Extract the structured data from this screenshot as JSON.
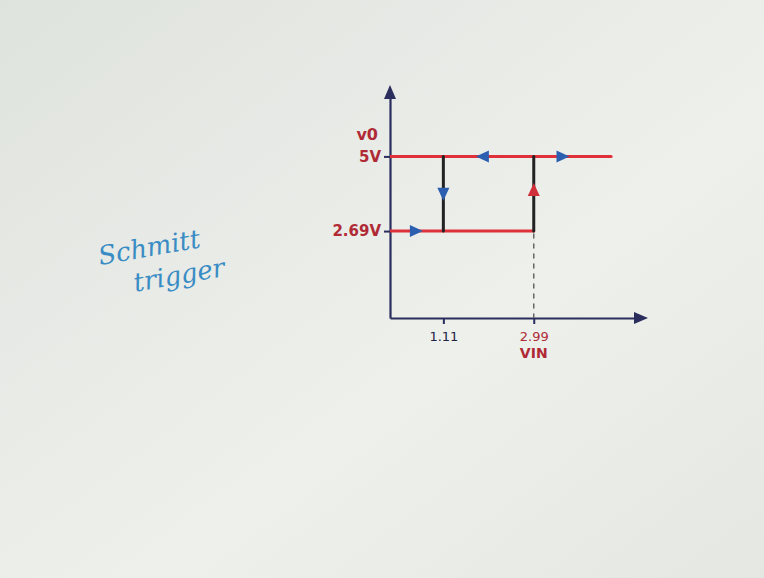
{
  "chart_data": {
    "type": "line",
    "x_label": "VIN",
    "y_label": "v0",
    "annotations": [
      {
        "text": "Schmitt trigger"
      }
    ],
    "series": [
      {
        "x": [
          0,
          2.99
        ],
        "values": [
          2.69,
          2.69
        ],
        "color": "#e0303a"
      },
      {
        "x": [
          0,
          4.6
        ],
        "values": [
          5,
          5
        ],
        "color": "#e0303a"
      },
      {
        "x": [
          2.99,
          2.99
        ],
        "values": [
          2.69,
          5
        ],
        "color": "#222222"
      },
      {
        "x": [
          1.11,
          1.11
        ],
        "values": [
          5,
          2.69
        ],
        "color": "#222222"
      },
      {
        "x": [
          2.99,
          2.99
        ],
        "values": [
          0,
          2.69
        ],
        "color": "#666666",
        "line_style": "dashed"
      }
    ],
    "xlim": [
      0,
      5.2
    ],
    "ylim": [
      0,
      6.9
    ],
    "xticks": [
      1.11,
      2.99
    ],
    "yticks": [
      {
        "value": 2.69,
        "label": "2.69V"
      },
      {
        "value": 5,
        "label": "5V"
      }
    ],
    "grid": false
  }
}
